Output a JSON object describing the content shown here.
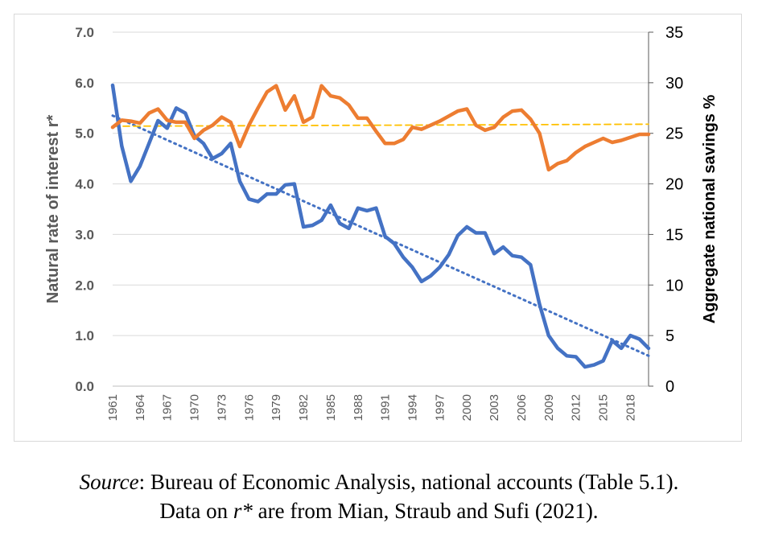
{
  "caption": {
    "source_label": "Source",
    "source_text": ": Bureau of Economic Analysis, national accounts (Table 5.1).",
    "line2_pre": "Data on ",
    "line2_var": "r*",
    "line2_post": " are from Mian, Straub and Sufi (2021)."
  },
  "chart_data": {
    "type": "line",
    "title": "",
    "ylabel": "Natural rate of interest r*",
    "y2label": "Aggregate national savings %",
    "ylim": [
      0,
      7
    ],
    "y2lim": [
      0,
      35
    ],
    "yticks": [
      "0.0",
      "1.0",
      "2.0",
      "3.0",
      "4.0",
      "5.0",
      "6.0",
      "7.0"
    ],
    "y2ticks": [
      "0",
      "5",
      "10",
      "15",
      "20",
      "25",
      "30",
      "35"
    ],
    "xticks": [
      "1961",
      "1964",
      "1967",
      "1970",
      "1973",
      "1976",
      "1979",
      "1982",
      "1985",
      "1988",
      "1991",
      "1994",
      "1997",
      "2000",
      "2003",
      "2006",
      "2009",
      "2012",
      "2015",
      "2018"
    ],
    "x": [
      1961,
      1962,
      1963,
      1964,
      1965,
      1966,
      1967,
      1968,
      1969,
      1970,
      1971,
      1972,
      1973,
      1974,
      1975,
      1976,
      1977,
      1978,
      1979,
      1980,
      1981,
      1982,
      1983,
      1984,
      1985,
      1986,
      1987,
      1988,
      1989,
      1990,
      1991,
      1992,
      1993,
      1994,
      1995,
      1996,
      1997,
      1998,
      1999,
      2000,
      2001,
      2002,
      2003,
      2004,
      2005,
      2006,
      2007,
      2008,
      2009,
      2010,
      2011,
      2012,
      2013,
      2014,
      2015,
      2016,
      2017,
      2018,
      2019,
      2020
    ],
    "grid": true,
    "series": [
      {
        "axis": "left",
        "color": "#4472c4",
        "values": [
          5.95,
          4.75,
          4.05,
          4.35,
          4.8,
          5.25,
          5.1,
          5.5,
          5.4,
          4.95,
          4.8,
          4.5,
          4.6,
          4.8,
          4.05,
          3.7,
          3.65,
          3.8,
          3.8,
          3.98,
          4.0,
          3.15,
          3.18,
          3.28,
          3.58,
          3.22,
          3.12,
          3.52,
          3.47,
          3.52,
          2.96,
          2.82,
          2.55,
          2.35,
          2.07,
          2.18,
          2.35,
          2.6,
          2.98,
          3.15,
          3.03,
          3.03,
          2.62,
          2.75,
          2.58,
          2.55,
          2.4,
          1.62,
          1.0,
          0.75,
          0.6,
          0.58,
          0.38,
          0.42,
          0.5,
          0.9,
          0.75,
          1.0,
          0.93,
          0.75
        ]
      },
      {
        "axis": "right",
        "color": "#ed7d31",
        "values": [
          25.6,
          26.3,
          26.2,
          26.0,
          27.0,
          27.4,
          26.3,
          26.1,
          26.1,
          24.5,
          25.3,
          25.8,
          26.6,
          26.1,
          23.7,
          25.8,
          27.5,
          29.1,
          29.7,
          27.3,
          28.7,
          26.1,
          26.6,
          29.7,
          28.7,
          28.5,
          27.8,
          26.5,
          26.5,
          25.2,
          24.0,
          24.0,
          24.4,
          25.6,
          25.4,
          25.8,
          26.2,
          26.7,
          27.2,
          27.4,
          25.8,
          25.3,
          25.6,
          26.6,
          27.2,
          27.3,
          26.4,
          25.0,
          21.4,
          22.0,
          22.3,
          23.1,
          23.7,
          24.1,
          24.5,
          24.1,
          24.3,
          24.6,
          24.9,
          24.9
        ]
      }
    ],
    "trendlines": [
      {
        "axis": "left",
        "style": "dotted",
        "color": "#4472c4",
        "start": 5.35,
        "end": 0.6
      },
      {
        "axis": "right",
        "style": "dashed",
        "color": "#ffc000",
        "start": 25.7,
        "end": 25.9
      }
    ]
  }
}
